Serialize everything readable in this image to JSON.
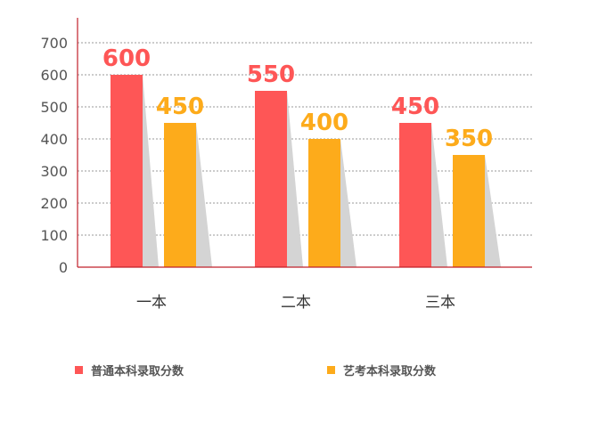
{
  "chart_data": {
    "type": "bar",
    "title": "",
    "xlabel": "",
    "ylabel": "",
    "categories": [
      "一本",
      "二本",
      "三本"
    ],
    "series": [
      {
        "name": "普通本科录取分数",
        "values": [
          600,
          550,
          450
        ],
        "color": "#fe5656"
      },
      {
        "name": "艺考本科录取分数",
        "values": [
          450,
          400,
          350
        ],
        "color": "#fdab1b"
      }
    ],
    "ylim": [
      0,
      700
    ],
    "yticks": [
      "0",
      "100",
      "200",
      "300",
      "400",
      "500",
      "600",
      "700"
    ],
    "grid": "horizontal-dashed",
    "legend_position": "bottom",
    "axis_color": "#c0202a",
    "shadow_color": "#d4d4d4"
  }
}
